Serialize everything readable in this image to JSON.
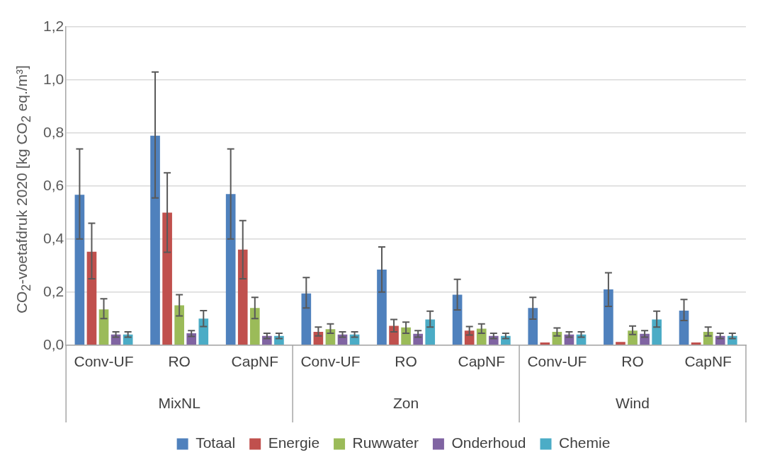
{
  "chart_data": {
    "type": "bar",
    "ylabel": "CO$_{2}$-voetafdruk 2020 [kg CO$_{2}$ eq./m³]",
    "categories": [
      "Conv-UF",
      "RO",
      "CapNF",
      "Conv-UF",
      "RO",
      "CapNF",
      "Conv-UF",
      "RO",
      "CapNF"
    ],
    "annotations": [
      "MixNL",
      "Zon",
      "Wind"
    ],
    "series": [
      {
        "name": "Totaal",
        "color": "#4f81bd",
        "values": [
          0.567,
          0.79,
          0.57,
          0.195,
          0.285,
          0.19,
          0.14,
          0.21,
          0.13
        ],
        "errors": [
          [
            0.4,
            0.74
          ],
          [
            0.555,
            1.03
          ],
          [
            0.4,
            0.74
          ],
          [
            0.14,
            0.255
          ],
          [
            0.2,
            0.37
          ],
          [
            0.133,
            0.248
          ],
          [
            0.098,
            0.18
          ],
          [
            0.146,
            0.273
          ],
          [
            0.093,
            0.172
          ]
        ]
      },
      {
        "name": "Energie",
        "color": "#c0504d",
        "values": [
          0.352,
          0.5,
          0.36,
          0.05,
          0.073,
          0.055,
          0.01,
          0.012,
          0.01
        ],
        "errors": [
          [
            0.25,
            0.46
          ],
          [
            0.35,
            0.65
          ],
          [
            0.25,
            0.47
          ],
          [
            0.035,
            0.068
          ],
          [
            0.05,
            0.097
          ],
          [
            0.038,
            0.07
          ],
          null,
          null,
          null
        ]
      },
      {
        "name": "Ruwwater",
        "color": "#9bbb59",
        "values": [
          0.135,
          0.15,
          0.14,
          0.06,
          0.067,
          0.062,
          0.05,
          0.055,
          0.05
        ],
        "errors": [
          [
            0.1,
            0.175
          ],
          [
            0.11,
            0.19
          ],
          [
            0.1,
            0.18
          ],
          [
            0.045,
            0.08
          ],
          [
            0.045,
            0.087
          ],
          [
            0.045,
            0.08
          ],
          [
            0.035,
            0.065
          ],
          [
            0.04,
            0.072
          ],
          [
            0.035,
            0.068
          ]
        ]
      },
      {
        "name": "Onderhoud",
        "color": "#8064a2",
        "values": [
          0.04,
          0.045,
          0.035,
          0.04,
          0.043,
          0.035,
          0.04,
          0.043,
          0.035
        ],
        "errors": [
          [
            0.03,
            0.05
          ],
          [
            0.033,
            0.055
          ],
          [
            0.025,
            0.045
          ],
          [
            0.03,
            0.05
          ],
          [
            0.03,
            0.055
          ],
          [
            0.025,
            0.045
          ],
          [
            0.03,
            0.05
          ],
          [
            0.03,
            0.055
          ],
          [
            0.025,
            0.045
          ]
        ]
      },
      {
        "name": "Chemie",
        "color": "#4bacc6",
        "values": [
          0.04,
          0.1,
          0.035,
          0.04,
          0.097,
          0.035,
          0.04,
          0.097,
          0.035
        ],
        "errors": [
          [
            0.03,
            0.05
          ],
          [
            0.07,
            0.13
          ],
          [
            0.025,
            0.045
          ],
          [
            0.03,
            0.05
          ],
          [
            0.068,
            0.128
          ],
          [
            0.025,
            0.045
          ],
          [
            0.03,
            0.05
          ],
          [
            0.068,
            0.128
          ],
          [
            0.025,
            0.045
          ]
        ]
      }
    ],
    "ylim": [
      0,
      1.2
    ],
    "yticks": [
      {
        "value": 0,
        "label": "0,0"
      },
      {
        "value": 0.2,
        "label": "0,2"
      },
      {
        "value": 0.4,
        "label": "0,4"
      },
      {
        "value": 0.6,
        "label": "0,6"
      },
      {
        "value": 0.8,
        "label": "0,8"
      },
      {
        "value": 1,
        "label": "1,0"
      },
      {
        "value": 1.2,
        "label": "1,2"
      }
    ],
    "grid": "y",
    "legend": "bottom"
  }
}
